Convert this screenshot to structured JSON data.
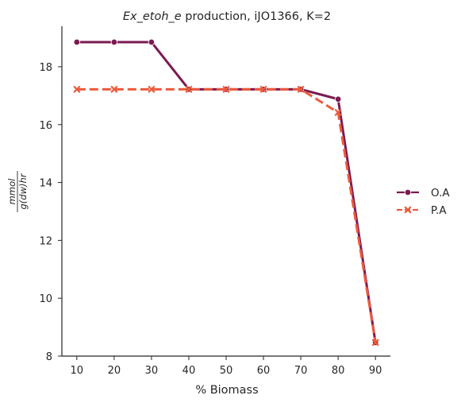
{
  "chart_data": {
    "type": "line",
    "title_italic": "Ex_etoh_e",
    "title_rest": " production, iJO1366, K=2",
    "xlabel": "% Biomass",
    "ylabel_num": "mmol",
    "ylabel_den": "g(dw)hr",
    "x": [
      10,
      20,
      30,
      40,
      50,
      60,
      70,
      80,
      90
    ],
    "xlim": [
      6,
      94
    ],
    "ylim": [
      8,
      19.4
    ],
    "xticks": [
      "10",
      "20",
      "30",
      "40",
      "50",
      "60",
      "70",
      "80",
      "90"
    ],
    "yticks": [
      "8",
      "10",
      "12",
      "14",
      "16",
      "18"
    ],
    "grid": false,
    "legend_position": "center-right",
    "series": [
      {
        "name": "O.A",
        "values": [
          18.85,
          18.85,
          18.85,
          17.22,
          17.22,
          17.22,
          17.22,
          16.88,
          8.47
        ],
        "color": "#7b1a52",
        "marker": "circle",
        "dash": "solid"
      },
      {
        "name": "P.A",
        "values": [
          17.22,
          17.22,
          17.22,
          17.22,
          17.22,
          17.22,
          17.22,
          16.42,
          8.47
        ],
        "color": "#ec5b3c",
        "marker": "x",
        "dash": "dashed"
      }
    ]
  }
}
